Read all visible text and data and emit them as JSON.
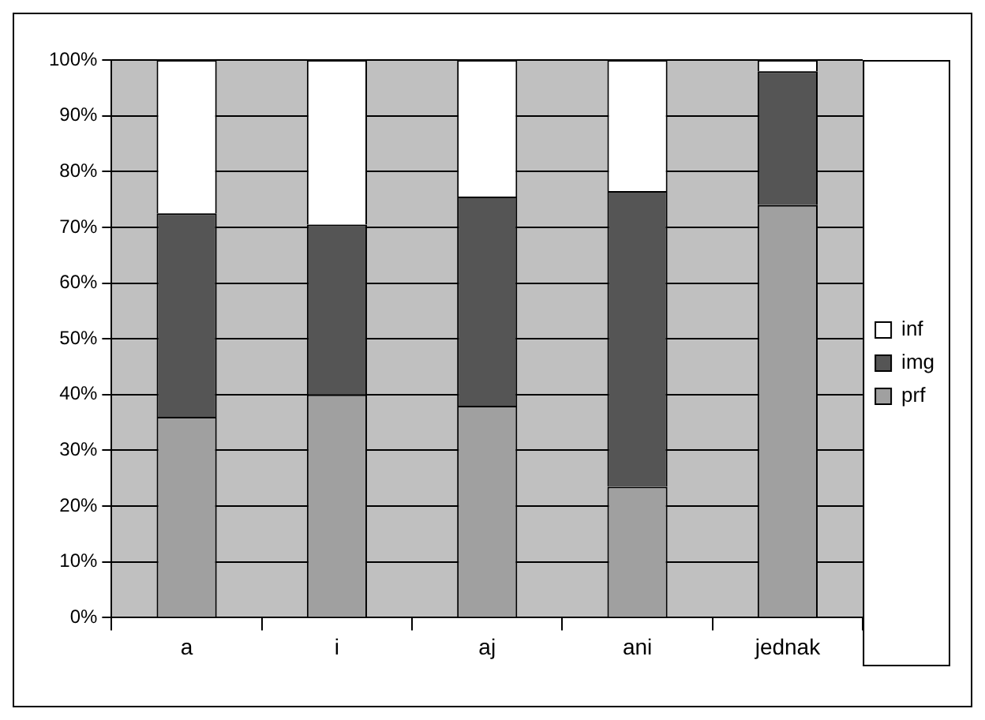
{
  "chart_data": {
    "type": "bar",
    "stacked": true,
    "categories": [
      "a",
      "i",
      "aj",
      "ani",
      "jednak"
    ],
    "series": [
      {
        "name": "prf",
        "color": "#a0a0a0",
        "values": [
          36,
          40,
          38,
          23.5,
          74
        ]
      },
      {
        "name": "img",
        "color": "#555555",
        "values": [
          36.5,
          30.5,
          37.5,
          53,
          24
        ]
      },
      {
        "name": "inf",
        "color": "#ffffff",
        "values": [
          27.5,
          29.5,
          24.5,
          23.5,
          2
        ]
      }
    ],
    "ylim": [
      0,
      100
    ],
    "yticks": [
      {
        "value": 0,
        "label": "0%"
      },
      {
        "value": 10,
        "label": "10%"
      },
      {
        "value": 20,
        "label": "20%"
      },
      {
        "value": 30,
        "label": "30%"
      },
      {
        "value": 40,
        "label": "40%"
      },
      {
        "value": 50,
        "label": "50%"
      },
      {
        "value": 60,
        "label": "60%"
      },
      {
        "value": 70,
        "label": "70%"
      },
      {
        "value": 80,
        "label": "80%"
      },
      {
        "value": 90,
        "label": "90%"
      },
      {
        "value": 100,
        "label": "100%"
      }
    ],
    "grid": "y",
    "legend": "right"
  }
}
